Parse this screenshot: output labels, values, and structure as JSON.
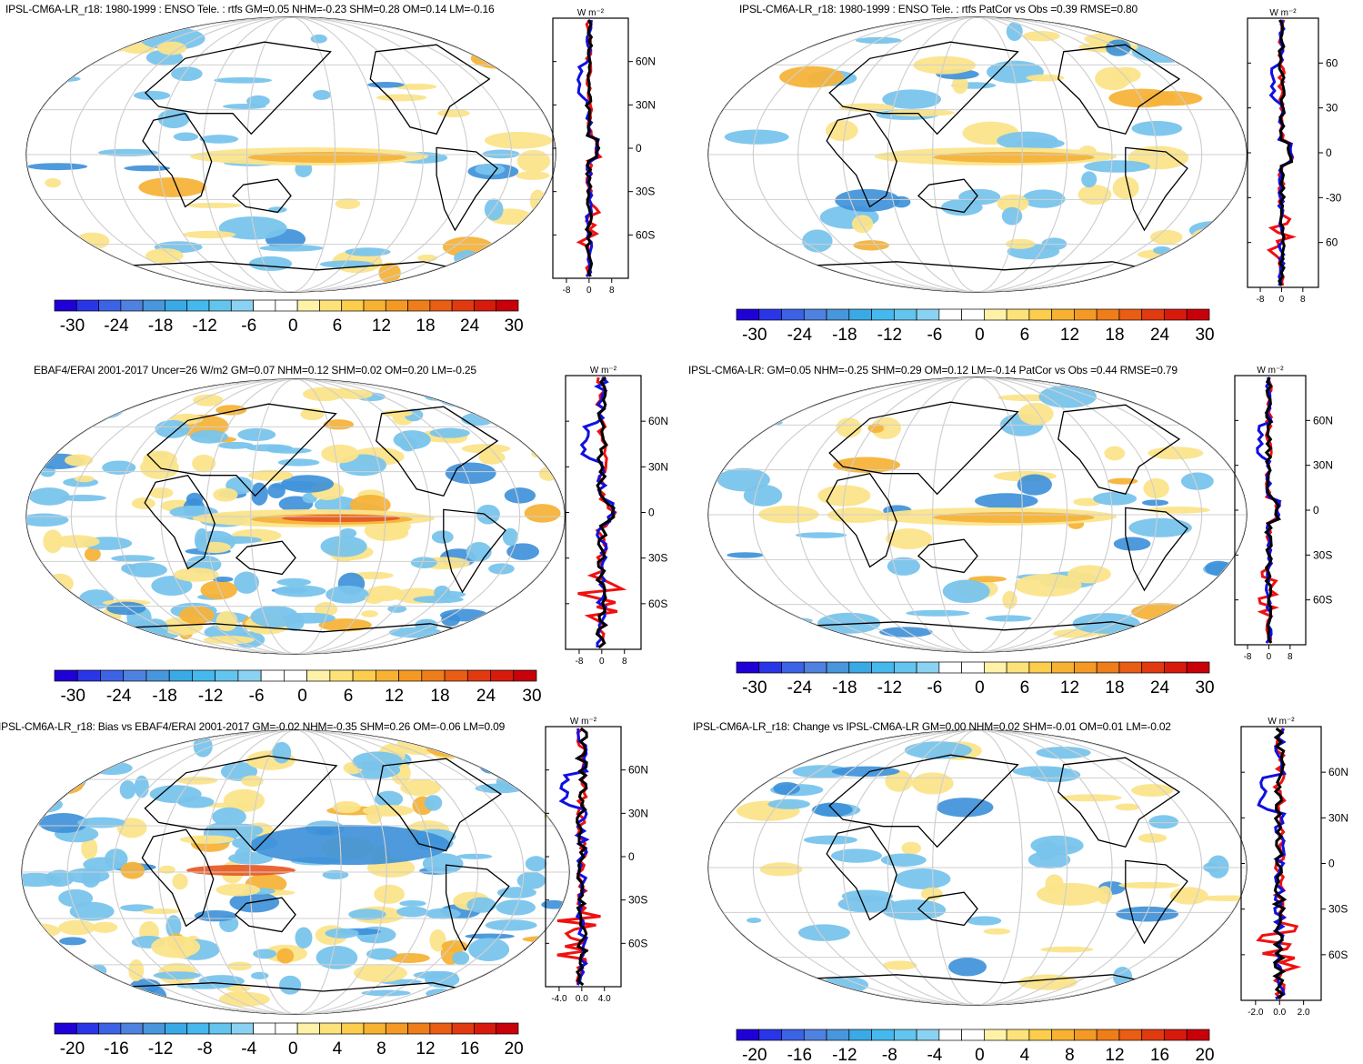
{
  "units_label": "W m⁻²",
  "colors": {
    "blue_line": "#1010e0",
    "red_line": "#f01010",
    "black_line": "#000000",
    "warm_1": "#fbe48a",
    "warm_2": "#f5b33a",
    "warm_3": "#e8541e",
    "cool_1": "#79c4ec",
    "cool_2": "#3b8fd8"
  },
  "colorbar_palette": [
    "#1f00d6",
    "#2b35e8",
    "#3c62e6",
    "#4f82e0",
    "#4896dc",
    "#3aaae6",
    "#45b8ee",
    "#63c4ee",
    "#8ad2f2",
    "#ffffff",
    "#ffffff",
    "#fff2a8",
    "#fde27a",
    "#fdcd4c",
    "#f8b232",
    "#f49a24",
    "#ef7d1a",
    "#e95d14",
    "#e23a10",
    "#d81a0c",
    "#c8000a"
  ],
  "panels": [
    {
      "id": "p1",
      "title": "IPSL-CM6A-LR_r18: 1980-1999 : ENSO Tele. : rtfs GM=0.05 NHM=-0.23 SHM=0.28 OM=0.14 LM=-0.16",
      "lat_ticks": [
        "60N",
        "30N",
        "0",
        "30S",
        "60S"
      ],
      "x_ticks": [
        "-8",
        "0",
        "8"
      ],
      "colorbar_ticks": [
        "-30",
        "-24",
        "-18",
        "-12",
        "-6",
        "0",
        "6",
        "12",
        "18",
        "24",
        "30"
      ]
    },
    {
      "id": "p2",
      "title": "IPSL-CM6A-LR_r18: 1980-1999 : ENSO Tele. : rtfs PatCor vs Obs =0.39 RMSE=0.80",
      "lat_ticks": [
        "60",
        "30",
        "0",
        "-30",
        "60"
      ],
      "x_ticks": [
        "-8",
        "0",
        "8"
      ],
      "colorbar_ticks": [
        "-30",
        "-24",
        "-18",
        "-12",
        "-6",
        "0",
        "6",
        "12",
        "18",
        "24",
        "30"
      ]
    },
    {
      "id": "p3",
      "title": "EBAF4/ERAI 2001-2017 Uncer=26 W/m2 GM=0.07 NHM=0.12 SHM=0.02 OM=0.20 LM=-0.25",
      "lat_ticks": [
        "60N",
        "30N",
        "0",
        "30S",
        "60S"
      ],
      "x_ticks": [
        "-8",
        "0",
        "8"
      ],
      "colorbar_ticks": [
        "-30",
        "-24",
        "-18",
        "-12",
        "-6",
        "0",
        "6",
        "12",
        "18",
        "24",
        "30"
      ]
    },
    {
      "id": "p4",
      "title": "IPSL-CM6A-LR: GM=0.05 NHM=-0.25 SHM=0.29 OM=0.12 LM=-0.14 PatCor vs Obs =0.44 RMSE=0.79",
      "lat_ticks": [
        "60N",
        "30N",
        "0",
        "30S",
        "60S"
      ],
      "x_ticks": [
        "-8",
        "0",
        "8"
      ],
      "colorbar_ticks": [
        "-30",
        "-24",
        "-18",
        "-12",
        "-6",
        "0",
        "6",
        "12",
        "18",
        "24",
        "30"
      ]
    },
    {
      "id": "p5",
      "title": "IPSL-CM6A-LR_r18: Bias vs EBAF4/ERAI 2001-2017 GM=-0.02 NHM=-0.35 SHM=0.26 OM=-0.06 LM=0.09",
      "lat_ticks": [
        "60N",
        "30N",
        "0",
        "30S",
        "60S"
      ],
      "x_ticks": [
        "-4.0",
        "0.0",
        "4.0"
      ],
      "colorbar_ticks": [
        "-20",
        "-16",
        "-12",
        "-8",
        "-4",
        "0",
        "4",
        "8",
        "12",
        "16",
        "20"
      ]
    },
    {
      "id": "p6",
      "title": "IPSL-CM6A-LR_r18: Change vs IPSL-CM6A-LR GM=0.00 NHM=0.02 SHM=-0.01 OM=0.01 LM=-0.02",
      "lat_ticks": [
        "60N",
        "30N",
        "0",
        "30S",
        "60S"
      ],
      "x_ticks": [
        "-2.0",
        "0.0",
        "2.0"
      ],
      "colorbar_ticks": [
        "-20",
        "-16",
        "-12",
        "-8",
        "-4",
        "0",
        "4",
        "8",
        "12",
        "16",
        "20"
      ]
    }
  ]
}
